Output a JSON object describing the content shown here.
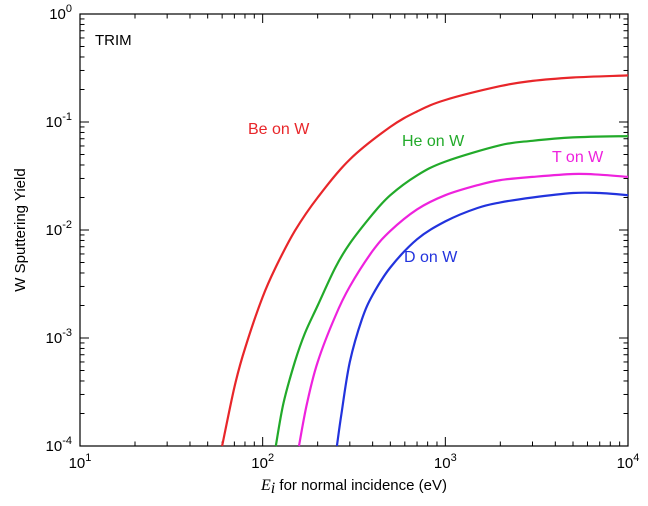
{
  "chart_data": {
    "type": "line",
    "x_scale": "log",
    "y_scale": "log",
    "xlim": [
      10,
      10000
    ],
    "ylim": [
      0.0001,
      1
    ],
    "x_ticks": [
      {
        "value": 10,
        "base": "10",
        "exp": "1"
      },
      {
        "value": 100,
        "base": "10",
        "exp": "2"
      },
      {
        "value": 1000,
        "base": "10",
        "exp": "3"
      },
      {
        "value": 10000,
        "base": "10",
        "exp": "4"
      }
    ],
    "y_ticks": [
      {
        "value": 0.0001,
        "base": "10",
        "exp": "-4"
      },
      {
        "value": 0.001,
        "base": "10",
        "exp": "-3"
      },
      {
        "value": 0.01,
        "base": "10",
        "exp": "-2"
      },
      {
        "value": 0.1,
        "base": "10",
        "exp": "-1"
      },
      {
        "value": 1,
        "base": "10",
        "exp": "0"
      }
    ],
    "xlabel_symbol": "E",
    "xlabel_subscript": "i",
    "xlabel_rest": " for normal incidence (eV)",
    "ylabel": "W Sputtering Yield",
    "annotation": "TRIM",
    "grid": false,
    "legend": "inline labels",
    "series": [
      {
        "name": "Be on W",
        "color": "#e8262a",
        "x": [
          60,
          70,
          80,
          100,
          120,
          150,
          200,
          300,
          500,
          700,
          1000,
          2000,
          3000,
          5000,
          10000
        ],
        "y": [
          0.0001,
          0.00035,
          0.0008,
          0.0024,
          0.0048,
          0.0098,
          0.02,
          0.045,
          0.09,
          0.125,
          0.16,
          0.215,
          0.24,
          0.258,
          0.27
        ]
      },
      {
        "name": "He on W",
        "color": "#22aa2a",
        "x": [
          118,
          130,
          150,
          170,
          200,
          250,
          300,
          400,
          500,
          700,
          1000,
          2000,
          3000,
          5000,
          10000
        ],
        "y": [
          0.0001,
          0.00025,
          0.0006,
          0.0011,
          0.002,
          0.0045,
          0.0075,
          0.014,
          0.021,
          0.032,
          0.043,
          0.061,
          0.067,
          0.072,
          0.074
        ]
      },
      {
        "name": "T on W",
        "color": "#ee22dd",
        "x": [
          158,
          175,
          200,
          250,
          300,
          400,
          500,
          700,
          1000,
          1500,
          2000,
          3000,
          5000,
          7000,
          10000
        ],
        "y": [
          0.0001,
          0.00025,
          0.0006,
          0.0016,
          0.003,
          0.0064,
          0.0098,
          0.0155,
          0.021,
          0.026,
          0.029,
          0.031,
          0.033,
          0.0325,
          0.031
        ]
      },
      {
        "name": "D on W",
        "color": "#2233dd",
        "x": [
          255,
          270,
          300,
          350,
          400,
          500,
          700,
          1000,
          1500,
          2000,
          3000,
          5000,
          7000,
          10000
        ],
        "y": [
          0.0001,
          0.0002,
          0.0006,
          0.0015,
          0.0025,
          0.0045,
          0.0082,
          0.012,
          0.016,
          0.018,
          0.02,
          0.022,
          0.022,
          0.021
        ]
      }
    ]
  }
}
